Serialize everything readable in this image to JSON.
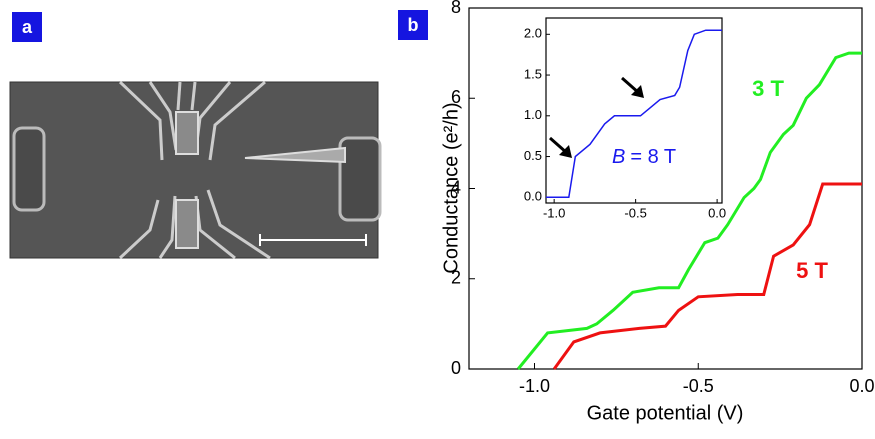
{
  "panel_labels": [
    "a",
    "b"
  ],
  "chart_data": [
    {
      "type": "line",
      "xlabel": "Gate potential  (V)",
      "ylabel": "Conductance  (e²/h)",
      "xlim": [
        -1.2,
        0
      ],
      "ylim": [
        0,
        8
      ],
      "xticks": [
        {
          "value": -1.0,
          "label": "-1.0"
        },
        {
          "value": -0.5,
          "label": "-0.5"
        },
        {
          "value": 0,
          "label": "0.0"
        }
      ],
      "yticks": [
        0,
        2,
        4,
        6,
        8
      ],
      "series": [
        {
          "name": "3 T",
          "color": "#22ee22",
          "x": [
            -1.05,
            -0.96,
            -0.84,
            -0.81,
            -0.76,
            -0.7,
            -0.62,
            -0.56,
            -0.53,
            -0.48,
            -0.44,
            -0.41,
            -0.36,
            -0.33,
            -0.31,
            -0.28,
            -0.24,
            -0.21,
            -0.17,
            -0.13,
            -0.08,
            -0.04,
            0
          ],
          "values": [
            0,
            0.8,
            0.9,
            1.0,
            1.3,
            1.7,
            1.8,
            1.8,
            2.2,
            2.8,
            2.9,
            3.2,
            3.8,
            4.0,
            4.2,
            4.8,
            5.2,
            5.4,
            6.0,
            6.3,
            6.9,
            7.0,
            7.0
          ]
        },
        {
          "name": "5 T",
          "color": "#ee1111",
          "x": [
            -0.94,
            -0.88,
            -0.8,
            -0.68,
            -0.6,
            -0.56,
            -0.5,
            -0.38,
            -0.3,
            -0.27,
            -0.21,
            -0.16,
            -0.12,
            0
          ],
          "values": [
            0,
            0.6,
            0.8,
            0.9,
            0.95,
            1.3,
            1.6,
            1.65,
            1.65,
            2.5,
            2.75,
            3.2,
            4.1,
            4.1
          ]
        }
      ]
    },
    {
      "type": "line",
      "annotation_var": "B",
      "annotation": "= 8 T",
      "xlim": [
        -1.05,
        0.03
      ],
      "ylim": [
        -0.07,
        2.2
      ],
      "xticks": [
        {
          "value": -1.0,
          "label": "-1.0"
        },
        {
          "value": -0.5,
          "label": "-0.5"
        },
        {
          "value": 0,
          "label": "0.0"
        }
      ],
      "yticks": [
        {
          "value": 0,
          "label": "0.0"
        },
        {
          "value": 0.5,
          "label": "0.5"
        },
        {
          "value": 1.0,
          "label": "1.0"
        },
        {
          "value": 1.5,
          "label": "1.5"
        },
        {
          "value": 2.0,
          "label": "2.0"
        }
      ],
      "series": [
        {
          "color": "#1a1aee",
          "x": [
            -1.05,
            -0.91,
            -0.87,
            -0.78,
            -0.69,
            -0.63,
            -0.47,
            -0.41,
            -0.35,
            -0.26,
            -0.23,
            -0.18,
            -0.14,
            -0.07,
            0.03
          ],
          "values": [
            0,
            0,
            0.5,
            0.65,
            0.9,
            1.0,
            1.0,
            1.1,
            1.2,
            1.25,
            1.35,
            1.8,
            2.0,
            2.05,
            2.05
          ]
        }
      ]
    }
  ]
}
